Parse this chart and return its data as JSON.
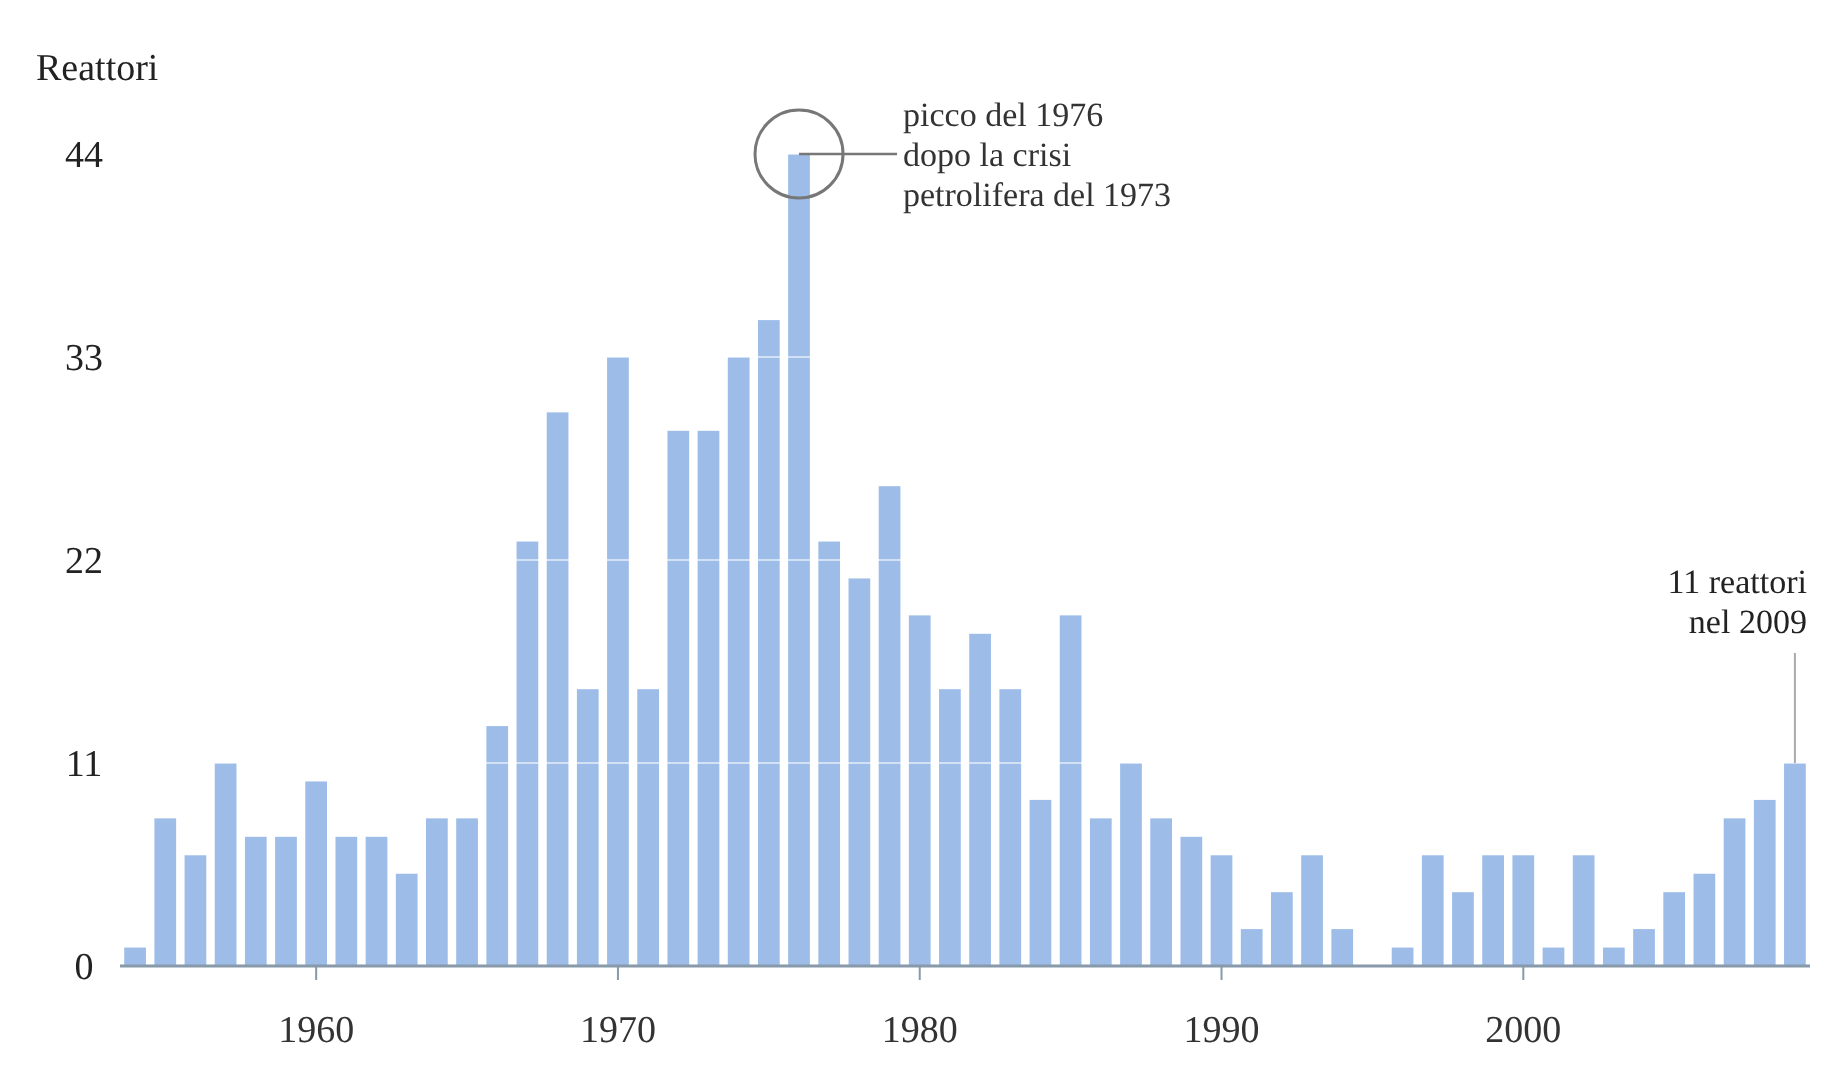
{
  "chart_data": {
    "type": "bar",
    "ylabel": "Reattori",
    "x": [
      1954,
      1955,
      1956,
      1957,
      1958,
      1959,
      1960,
      1961,
      1962,
      1963,
      1964,
      1965,
      1966,
      1967,
      1968,
      1969,
      1970,
      1971,
      1972,
      1973,
      1974,
      1975,
      1976,
      1977,
      1978,
      1979,
      1980,
      1981,
      1982,
      1983,
      1984,
      1985,
      1986,
      1987,
      1988,
      1989,
      1990,
      1991,
      1992,
      1993,
      1994,
      1995,
      1996,
      1997,
      1998,
      1999,
      2000,
      2001,
      2002,
      2003,
      2004,
      2005,
      2006,
      2007,
      2008,
      2009
    ],
    "values": [
      1,
      8,
      6,
      11,
      7,
      7,
      10,
      7,
      7,
      5,
      8,
      8,
      13,
      23,
      30,
      15,
      33,
      15,
      29,
      29,
      33,
      35,
      44,
      23,
      21,
      26,
      19,
      15,
      18,
      15,
      9,
      19,
      8,
      11,
      8,
      7,
      6,
      2,
      4,
      6,
      2,
      0,
      1,
      6,
      4,
      6,
      6,
      1,
      6,
      1,
      2,
      4,
      5,
      8,
      9,
      11
    ],
    "color": "#9dbde8",
    "xlim": [
      1953.5,
      2009.5
    ],
    "xticks": [
      1960,
      1970,
      1980,
      1990,
      2000
    ],
    "ylim": [
      0,
      44
    ],
    "yticks": [
      0,
      11,
      22,
      33,
      44
    ],
    "grid": "y",
    "annotations": [
      {
        "text": "picco del 1976\ndopo la crisi\npetrolifera del 1973",
        "x": 1976,
        "y": 44
      },
      {
        "text": "11 reattori\nnel 2009",
        "x": 2009,
        "y": 11
      }
    ]
  }
}
